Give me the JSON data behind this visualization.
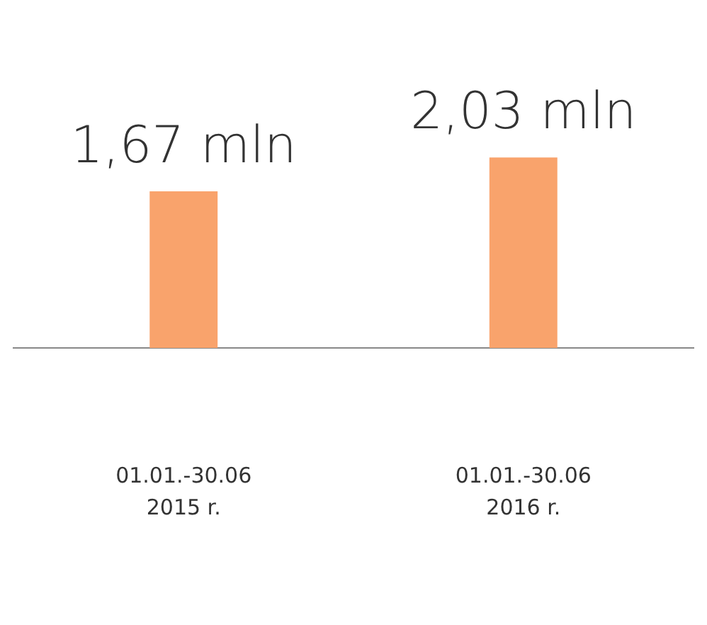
{
  "chart_data": {
    "type": "bar",
    "categories": [
      "01.01.-30.06\n2015 r.",
      "01.01.-30.06\n2016 r."
    ],
    "values": [
      1.67,
      2.03
    ],
    "value_labels": [
      "1,67 mln",
      "2,03 mln"
    ],
    "color": "#f9a36c",
    "grid": false,
    "legend": false
  }
}
